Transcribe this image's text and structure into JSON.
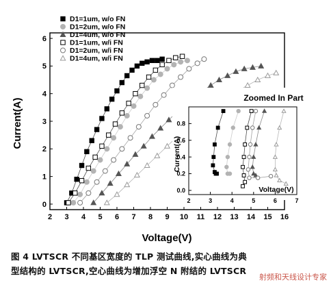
{
  "chart_data": [
    {
      "type": "scatter",
      "panel": "main",
      "xlabel": "Voltage(V)",
      "ylabel": "Current(A)",
      "xlim": [
        2,
        16
      ],
      "ylim": [
        -0.2,
        6.2
      ],
      "xticks": [
        2,
        3,
        4,
        5,
        6,
        7,
        8,
        9,
        10,
        11,
        12,
        13,
        14,
        15,
        16
      ],
      "yticks": [
        0,
        1,
        2,
        3,
        4,
        5,
        6
      ],
      "legend_placement": "top-left",
      "series": [
        {
          "name": "D1=1um, w/o FN",
          "marker": "square",
          "filled": true,
          "color": "#000000",
          "x": [
            3.0,
            3.3,
            3.6,
            3.9,
            4.2,
            4.5,
            4.8,
            5.1,
            5.4,
            5.7,
            6.0,
            6.3,
            6.6,
            6.9,
            7.2,
            7.5,
            7.8,
            8.1,
            8.4,
            8.7
          ],
          "y": [
            0.05,
            0.4,
            0.9,
            1.4,
            1.9,
            2.3,
            2.7,
            3.1,
            3.45,
            3.8,
            4.1,
            4.4,
            4.65,
            4.85,
            5.0,
            5.1,
            5.15,
            5.2,
            5.2,
            5.25
          ]
        },
        {
          "name": "D1=2um, w/o FN",
          "marker": "circle",
          "filled": true,
          "color": "#b3b3b3",
          "x": [
            3.4,
            3.8,
            4.2,
            4.6,
            5.0,
            5.4,
            5.8,
            6.2,
            6.6,
            7.0,
            7.4,
            7.8,
            8.2,
            8.6,
            9.0,
            9.4,
            9.8,
            10.2
          ],
          "y": [
            0.05,
            0.35,
            0.8,
            1.2,
            1.6,
            2.0,
            2.4,
            2.8,
            3.2,
            3.55,
            3.9,
            4.2,
            4.5,
            4.7,
            4.9,
            5.05,
            5.15,
            5.2
          ]
        },
        {
          "name": "D1=4um, w/o FN",
          "marker": "triangle",
          "filled": true,
          "color": "#555555",
          "x": [
            4.6,
            5.1,
            5.6,
            6.1,
            6.6,
            7.1,
            7.6,
            8.1,
            8.6,
            9.1,
            9.6,
            10.1,
            10.6,
            11.1,
            11.6,
            12.1,
            12.6,
            13.1,
            13.6,
            14.1,
            14.6
          ],
          "y": [
            0.05,
            0.4,
            0.75,
            1.1,
            1.45,
            1.8,
            2.1,
            2.45,
            2.75,
            3.05,
            3.35,
            3.6,
            3.85,
            4.1,
            4.3,
            4.5,
            4.65,
            4.8,
            4.9,
            4.95,
            5.0
          ]
        },
        {
          "name": "D1=1um, w/i FN",
          "marker": "square",
          "filled": false,
          "color": "#000000",
          "x": [
            3.1,
            3.5,
            3.9,
            4.3,
            4.7,
            5.1,
            5.5,
            5.9,
            6.3,
            6.7,
            7.1,
            7.5,
            7.9,
            8.3,
            8.7,
            9.1,
            9.5,
            9.9
          ],
          "y": [
            0.05,
            0.4,
            0.85,
            1.3,
            1.7,
            2.1,
            2.5,
            2.9,
            3.3,
            3.65,
            4.0,
            4.3,
            4.6,
            4.85,
            5.05,
            5.2,
            5.3,
            5.35
          ]
        },
        {
          "name": "D1=2um, w/i FN",
          "marker": "circle",
          "filled": false,
          "color": "#777777",
          "x": [
            3.8,
            4.3,
            4.8,
            5.3,
            5.8,
            6.3,
            6.8,
            7.3,
            7.8,
            8.3,
            8.8,
            9.3,
            9.8,
            10.3,
            10.8,
            11.2
          ],
          "y": [
            0.05,
            0.4,
            0.8,
            1.2,
            1.6,
            2.0,
            2.4,
            2.8,
            3.2,
            3.6,
            3.95,
            4.3,
            4.6,
            4.9,
            5.1,
            5.25
          ]
        },
        {
          "name": "D1=4um, w/i FN",
          "marker": "triangle",
          "filled": false,
          "color": "#999999",
          "x": [
            5.4,
            6.0,
            6.6,
            7.2,
            7.8,
            8.4,
            9.0,
            9.6,
            10.2,
            10.8,
            11.4,
            12.0,
            12.6,
            13.2,
            13.8,
            14.4,
            15.0,
            15.5
          ],
          "y": [
            0.05,
            0.35,
            0.7,
            1.05,
            1.4,
            1.75,
            2.1,
            2.45,
            2.75,
            3.05,
            3.35,
            3.6,
            3.85,
            4.1,
            4.3,
            4.5,
            4.65,
            4.75
          ]
        }
      ]
    },
    {
      "type": "line",
      "panel": "inset",
      "title": "Zoomed In Part",
      "xlabel": "Voltage(V)",
      "ylabel": "Current(A)",
      "xlim": [
        2,
        7
      ],
      "ylim": [
        -0.05,
        1.0
      ],
      "xticks": [
        2,
        3,
        4,
        5,
        6,
        7
      ],
      "yticks": [
        0.0,
        0.2,
        0.4,
        0.6,
        0.8
      ],
      "series": [
        {
          "name": "D1=1um, w/o FN",
          "marker": "square",
          "filled": true,
          "color": "#000000",
          "x": [
            3.6,
            3.35,
            3.2,
            3.15,
            3.12,
            3.2,
            3.25,
            3.3
          ],
          "y": [
            0.95,
            0.75,
            0.55,
            0.4,
            0.3,
            0.22,
            0.2,
            0.2
          ]
        },
        {
          "name": "D1=2um, w/o FN",
          "marker": "circle",
          "filled": true,
          "color": "#b3b3b3",
          "x": [
            4.3,
            4.05,
            3.9,
            3.8,
            3.75,
            3.8,
            3.9
          ],
          "y": [
            0.95,
            0.75,
            0.55,
            0.4,
            0.28,
            0.2,
            0.2
          ]
        },
        {
          "name": "D1=4um, w/o FN",
          "marker": "triangle",
          "filled": true,
          "color": "#555555",
          "x": [
            5.5,
            5.25,
            5.1,
            5.0,
            4.95,
            5.0,
            5.1
          ],
          "y": [
            0.95,
            0.75,
            0.55,
            0.4,
            0.28,
            0.2,
            0.18
          ]
        },
        {
          "name": "D1=1um, w/i FN",
          "marker": "square",
          "filled": false,
          "color": "#000000",
          "x": [
            4.9,
            4.7,
            4.6,
            4.55,
            4.5,
            4.55,
            4.6,
            4.5
          ],
          "y": [
            0.95,
            0.75,
            0.55,
            0.4,
            0.28,
            0.18,
            0.1,
            0.05
          ]
        },
        {
          "name": "D1=2um, w/i FN",
          "marker": "circle",
          "filled": false,
          "color": "#777777",
          "x": [
            5.1,
            4.95,
            4.85,
            4.8,
            4.75,
            4.8,
            5.2,
            5.8
          ],
          "y": [
            0.95,
            0.75,
            0.55,
            0.4,
            0.25,
            0.15,
            0.15,
            0.17
          ]
        },
        {
          "name": "D1=4um, w/i FN",
          "marker": "triangle",
          "filled": false,
          "color": "#999999",
          "x": [
            6.4,
            6.2,
            6.05,
            6.0,
            6.0,
            6.05,
            6.2,
            6.5
          ],
          "y": [
            0.95,
            0.75,
            0.55,
            0.4,
            0.25,
            0.18,
            0.12,
            0.08
          ]
        }
      ]
    }
  ],
  "caption": {
    "line1": "图 4 LVTSCR 不同基区宽度的 TLP 测试曲线,实心曲线为典",
    "line2": "型结构的 LVTSCR,空心曲线为增加浮空 N 附结的 LVTSCR"
  },
  "watermark": "射频和天线设计专家"
}
